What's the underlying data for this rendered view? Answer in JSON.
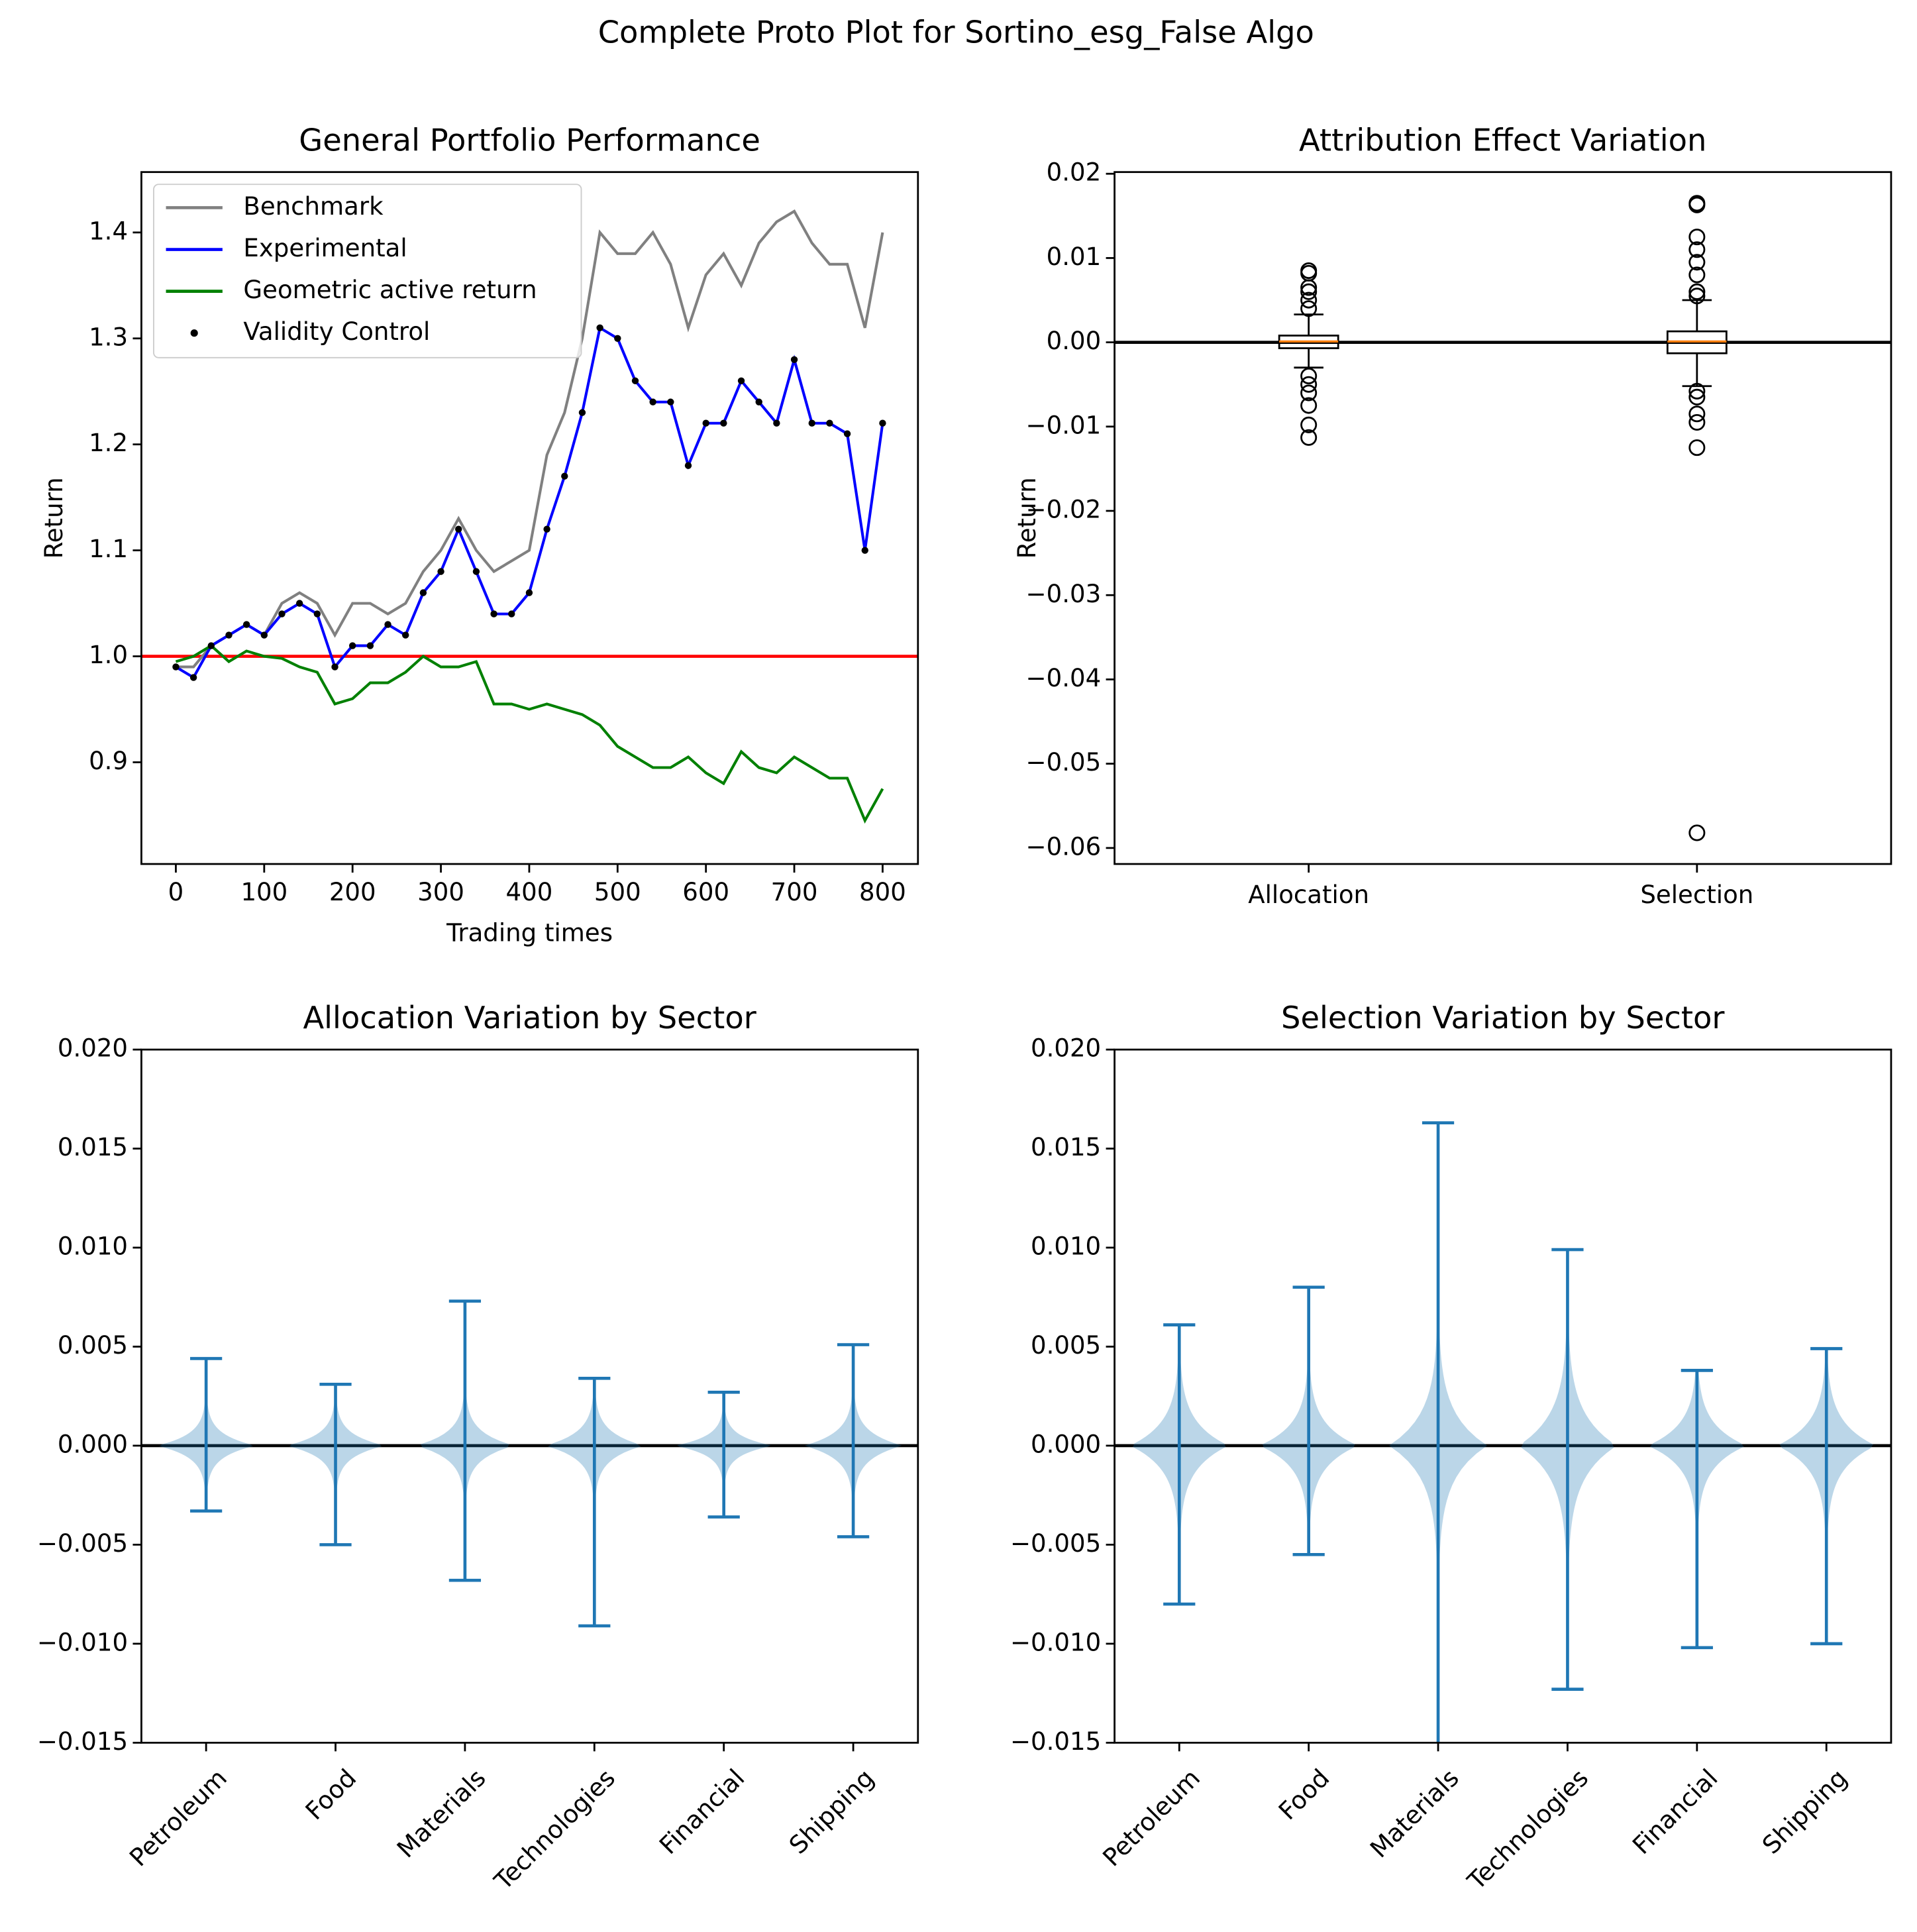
{
  "title": "Complete Proto Plot for Sortino_esg_False Algo",
  "chart_data": [
    {
      "type": "line",
      "title": "General Portfolio Performance",
      "x_label": "Trading times",
      "y_label": "Return",
      "x": [
        0,
        20,
        40,
        60,
        80,
        100,
        120,
        140,
        160,
        180,
        200,
        220,
        240,
        260,
        280,
        300,
        320,
        340,
        360,
        380,
        400,
        420,
        440,
        460,
        480,
        500,
        520,
        540,
        560,
        580,
        600,
        620,
        640,
        660,
        680,
        700,
        720,
        740,
        760,
        780,
        800
      ],
      "series": [
        {
          "name": "Benchmark",
          "color": "#808080",
          "style": "line",
          "values": [
            0.99,
            0.99,
            1.01,
            1.02,
            1.03,
            1.02,
            1.05,
            1.06,
            1.05,
            1.02,
            1.05,
            1.05,
            1.04,
            1.05,
            1.08,
            1.1,
            1.13,
            1.1,
            1.08,
            1.09,
            1.1,
            1.19,
            1.23,
            1.3,
            1.4,
            1.38,
            1.38,
            1.4,
            1.37,
            1.31,
            1.36,
            1.38,
            1.35,
            1.39,
            1.41,
            1.42,
            1.39,
            1.37,
            1.37,
            1.31,
            1.4
          ]
        },
        {
          "name": "Experimental",
          "color": "#0000ff",
          "style": "line",
          "values": [
            0.99,
            0.98,
            1.01,
            1.02,
            1.03,
            1.02,
            1.04,
            1.05,
            1.04,
            0.99,
            1.01,
            1.01,
            1.03,
            1.02,
            1.06,
            1.08,
            1.12,
            1.08,
            1.04,
            1.04,
            1.06,
            1.12,
            1.17,
            1.23,
            1.31,
            1.3,
            1.26,
            1.24,
            1.24,
            1.18,
            1.22,
            1.22,
            1.26,
            1.24,
            1.22,
            1.28,
            1.22,
            1.22,
            1.21,
            1.1,
            1.22
          ]
        },
        {
          "name": "Geometric active return",
          "color": "#008000",
          "style": "line",
          "values": [
            0.995,
            1.0,
            1.01,
            0.995,
            1.005,
            1.0,
            0.998,
            0.99,
            0.985,
            0.955,
            0.96,
            0.975,
            0.975,
            0.985,
            1.0,
            0.99,
            0.99,
            0.995,
            0.955,
            0.955,
            0.95,
            0.955,
            0.95,
            0.945,
            0.935,
            0.915,
            0.905,
            0.895,
            0.895,
            0.905,
            0.89,
            0.88,
            0.91,
            0.895,
            0.89,
            0.905,
            0.895,
            0.885,
            0.885,
            0.845,
            0.875
          ]
        },
        {
          "name": "Validity Control",
          "color": "#000000",
          "style": "scatter",
          "values": [
            0.99,
            0.98,
            1.01,
            1.02,
            1.03,
            1.02,
            1.04,
            1.05,
            1.04,
            0.99,
            1.01,
            1.01,
            1.03,
            1.02,
            1.06,
            1.08,
            1.12,
            1.08,
            1.04,
            1.04,
            1.06,
            1.12,
            1.17,
            1.23,
            1.31,
            1.3,
            1.26,
            1.24,
            1.24,
            1.18,
            1.22,
            1.22,
            1.26,
            1.24,
            1.22,
            1.28,
            1.22,
            1.22,
            1.21,
            1.1,
            1.22
          ]
        }
      ],
      "hline": {
        "value": 1.0,
        "color": "#ff0000"
      },
      "xlim": [
        -39,
        840
      ],
      "xticks": [
        0,
        100,
        200,
        300,
        400,
        500,
        600,
        700,
        800
      ],
      "ylim": [
        0.804,
        1.457
      ],
      "yticks": [
        {
          "value": 0.9,
          "label": "0.9"
        },
        {
          "value": 1.0,
          "label": "1.0"
        },
        {
          "value": 1.1,
          "label": "1.1"
        },
        {
          "value": 1.2,
          "label": "1.2"
        },
        {
          "value": 1.3,
          "label": "1.3"
        },
        {
          "value": 1.4,
          "label": "1.4"
        }
      ],
      "legend": "upper left"
    },
    {
      "type": "box",
      "title": "Attribution Effect Variation",
      "y_label": "Return",
      "categories": [
        "Allocation",
        "Selection"
      ],
      "boxes": [
        {
          "whislo": -0.003,
          "q1": -0.0007,
          "median": 0.0001,
          "q3": 0.0008,
          "whishi": 0.0033,
          "fliers": [
            0.0085,
            0.0082,
            0.0065,
            0.006,
            0.005,
            0.004,
            -0.004,
            -0.005,
            -0.006,
            -0.0075,
            -0.0098,
            -0.0113
          ]
        },
        {
          "whislo": -0.0052,
          "q1": -0.0013,
          "median": 0.0001,
          "q3": 0.0013,
          "whishi": 0.005,
          "fliers": [
            0.0165,
            0.0163,
            0.0125,
            0.011,
            0.0095,
            0.008,
            0.006,
            0.0055,
            -0.0058,
            -0.0065,
            -0.0085,
            -0.0095,
            -0.0125,
            -0.0582
          ]
        }
      ],
      "median_color": "#ff7f0e",
      "hline": {
        "value": 0,
        "color": "#000000"
      },
      "ylim": [
        -0.0619,
        0.0202
      ],
      "yticks": [
        {
          "value": -0.06,
          "label": "−0.06"
        },
        {
          "value": -0.05,
          "label": "−0.05"
        },
        {
          "value": -0.04,
          "label": "−0.04"
        },
        {
          "value": -0.03,
          "label": "−0.03"
        },
        {
          "value": -0.02,
          "label": "−0.02"
        },
        {
          "value": -0.01,
          "label": "−0.01"
        },
        {
          "value": 0,
          "label": "0.00"
        },
        {
          "value": 0.01,
          "label": "0.01"
        },
        {
          "value": 0.02,
          "label": "0.02"
        }
      ]
    },
    {
      "type": "violin",
      "title": "Allocation Variation by Sector",
      "color": "#1f77b4",
      "categories": [
        "Petroleum",
        "Food",
        "Materials",
        "Technologies",
        "Financial",
        "Shipping"
      ],
      "mins": [
        -0.0033,
        -0.005,
        -0.0068,
        -0.0091,
        -0.0036,
        -0.0046
      ],
      "maxs": [
        0.0044,
        0.0031,
        0.0073,
        0.0034,
        0.0027,
        0.0051
      ],
      "spread": [
        0.0006,
        0.0006,
        0.0007,
        0.0007,
        0.0005,
        0.0007
      ],
      "hline": {
        "value": 0,
        "color": "#000000"
      },
      "ylim": [
        -0.015,
        0.02
      ],
      "yticks": [
        {
          "value": -0.015,
          "label": "−0.015"
        },
        {
          "value": -0.01,
          "label": "−0.010"
        },
        {
          "value": -0.005,
          "label": "−0.005"
        },
        {
          "value": 0,
          "label": "0.000"
        },
        {
          "value": 0.005,
          "label": "0.005"
        },
        {
          "value": 0.01,
          "label": "0.010"
        },
        {
          "value": 0.015,
          "label": "0.015"
        },
        {
          "value": 0.02,
          "label": "0.020"
        }
      ]
    },
    {
      "type": "violin",
      "title": "Selection Variation by Sector",
      "color": "#1f77b4",
      "categories": [
        "Petroleum",
        "Food",
        "Materials",
        "Technologies",
        "Financial",
        "Shipping"
      ],
      "mins": [
        -0.008,
        -0.0055,
        -0.0155,
        -0.0123,
        -0.0102,
        -0.01
      ],
      "maxs": [
        0.0061,
        0.008,
        0.0163,
        0.0099,
        0.0038,
        0.0049
      ],
      "spread": [
        0.0012,
        0.0011,
        0.0016,
        0.0016,
        0.0011,
        0.0012
      ],
      "hline": {
        "value": 0,
        "color": "#000000"
      },
      "ylim": [
        -0.015,
        0.02
      ],
      "yticks": [
        {
          "value": -0.015,
          "label": "−0.015"
        },
        {
          "value": -0.01,
          "label": "−0.010"
        },
        {
          "value": -0.005,
          "label": "−0.005"
        },
        {
          "value": 0,
          "label": "0.000"
        },
        {
          "value": 0.005,
          "label": "0.005"
        },
        {
          "value": 0.01,
          "label": "0.010"
        },
        {
          "value": 0.015,
          "label": "0.015"
        },
        {
          "value": 0.02,
          "label": "0.020"
        }
      ]
    }
  ]
}
